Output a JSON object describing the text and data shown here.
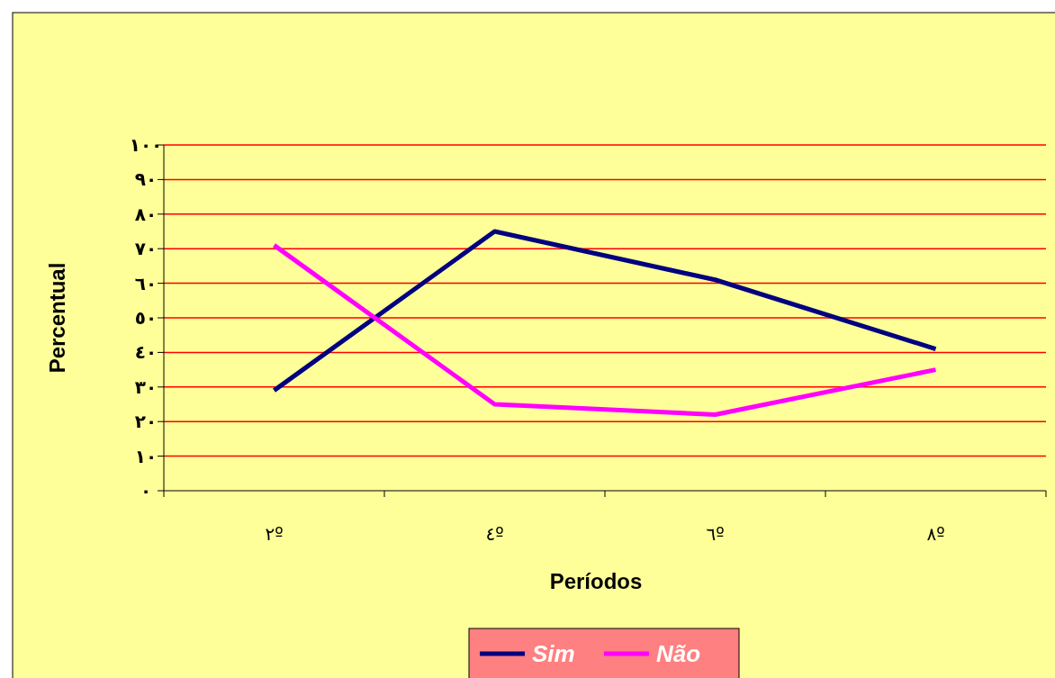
{
  "chart_data": {
    "type": "line",
    "xlabel": "Períodos",
    "ylabel": "Percentual",
    "categories": [
      "٢º",
      "٤º",
      "٦º",
      "٨º"
    ],
    "series": [
      {
        "name": "Sim",
        "color": "#000080",
        "values": [
          29,
          75,
          61,
          41
        ]
      },
      {
        "name": "Não",
        "color": "#ff00ff",
        "values": [
          71,
          25,
          22,
          35
        ]
      }
    ],
    "ylim": [
      0,
      100
    ],
    "yticks": [
      {
        "value": 0,
        "label": "٠"
      },
      {
        "value": 10,
        "label": "١٠"
      },
      {
        "value": 20,
        "label": "٢٠"
      },
      {
        "value": 30,
        "label": "٣٠"
      },
      {
        "value": 40,
        "label": "٤٠"
      },
      {
        "value": 50,
        "label": "٥٠"
      },
      {
        "value": 60,
        "label": "٦٠"
      },
      {
        "value": 70,
        "label": "٧٠"
      },
      {
        "value": 80,
        "label": "٨٠"
      },
      {
        "value": 90,
        "label": "٩٠"
      },
      {
        "value": 100,
        "label": "١٠٠"
      }
    ],
    "grid": "y",
    "legend": "bottom",
    "marker": "none",
    "line_style": "solid"
  }
}
